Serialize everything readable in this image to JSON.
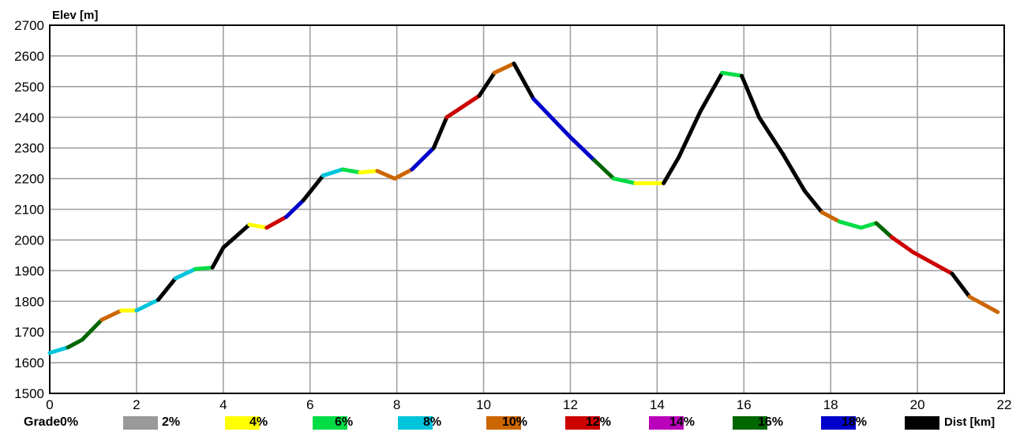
{
  "chart_data": {
    "type": "line",
    "ylabel": "Elev [m]",
    "xlabel": "Dist [km]",
    "xlim": [
      0,
      22
    ],
    "ylim": [
      1500,
      2700
    ],
    "x_ticks": [
      "0",
      "2",
      "4",
      "6",
      "8",
      "10",
      "12",
      "14",
      "16",
      "18",
      "20",
      "22"
    ],
    "y_ticks": [
      "1500",
      "1600",
      "1700",
      "1800",
      "1900",
      "2000",
      "2100",
      "2200",
      "2300",
      "2400",
      "2500",
      "2600",
      "2700"
    ],
    "grid": true,
    "legend_title": "Grade",
    "legend": [
      {
        "label": "0%",
        "color": "#999999"
      },
      {
        "label": "2%",
        "color": "#ffff00"
      },
      {
        "label": "4%",
        "color": "#00dd44"
      },
      {
        "label": "6%",
        "color": "#00c4dc"
      },
      {
        "label": "8%",
        "color": "#cc6600"
      },
      {
        "label": "10%",
        "color": "#cc0000"
      },
      {
        "label": "12%",
        "color": "#bb00bb"
      },
      {
        "label": "14%",
        "color": "#006600"
      },
      {
        "label": "16%",
        "color": "#0000cc"
      },
      {
        "label": "18%",
        "color": "#000000"
      }
    ],
    "series": [
      {
        "points": [
          [
            0,
            1632
          ],
          [
            0.42,
            1650
          ],
          [
            0.75,
            1675
          ],
          [
            1.2,
            1740
          ],
          [
            1.65,
            1770
          ],
          [
            2.0,
            1770
          ],
          [
            2.5,
            1805
          ],
          [
            2.9,
            1875
          ],
          [
            3.35,
            1905
          ],
          [
            3.75,
            1910
          ],
          [
            4.0,
            1975
          ],
          [
            4.6,
            2050
          ],
          [
            5.0,
            2040
          ],
          [
            5.45,
            2075
          ],
          [
            5.85,
            2130
          ],
          [
            6.3,
            2210
          ],
          [
            6.75,
            2230
          ],
          [
            7.15,
            2220
          ],
          [
            7.55,
            2225
          ],
          [
            7.95,
            2200
          ],
          [
            8.35,
            2230
          ],
          [
            8.85,
            2300
          ],
          [
            9.15,
            2400
          ],
          [
            9.9,
            2470
          ],
          [
            10.25,
            2545
          ],
          [
            10.7,
            2575
          ],
          [
            11.15,
            2460
          ],
          [
            12.0,
            2335
          ],
          [
            12.55,
            2260
          ],
          [
            13.0,
            2200
          ],
          [
            13.5,
            2185
          ],
          [
            14.15,
            2185
          ],
          [
            14.5,
            2270
          ],
          [
            15.0,
            2420
          ],
          [
            15.5,
            2545
          ],
          [
            15.95,
            2535
          ],
          [
            16.35,
            2400
          ],
          [
            16.9,
            2280
          ],
          [
            17.4,
            2160
          ],
          [
            17.8,
            2090
          ],
          [
            18.2,
            2060
          ],
          [
            18.7,
            2040
          ],
          [
            19.05,
            2055
          ],
          [
            19.4,
            2010
          ],
          [
            19.9,
            1960
          ],
          [
            20.8,
            1890
          ],
          [
            21.2,
            1815
          ],
          [
            21.85,
            1765
          ]
        ],
        "grades": [
          "6%",
          "14%",
          "14%",
          "8%",
          "2%",
          "6%",
          "18%",
          "6%",
          "4%",
          "18%",
          "18%",
          "2%",
          "10%",
          "16%",
          "18%",
          "6%",
          "4%",
          "2%",
          "8%",
          "8%",
          "16%",
          "18%",
          "10%",
          "18%",
          "8%",
          "18%",
          "16%",
          "16%",
          "14%",
          "4%",
          "2%",
          "18%",
          "18%",
          "18%",
          "4%",
          "18%",
          "18%",
          "18%",
          "18%",
          "8%",
          "4%",
          "4%",
          "14%",
          "10%",
          "10%",
          "18%",
          "8%"
        ]
      }
    ]
  }
}
